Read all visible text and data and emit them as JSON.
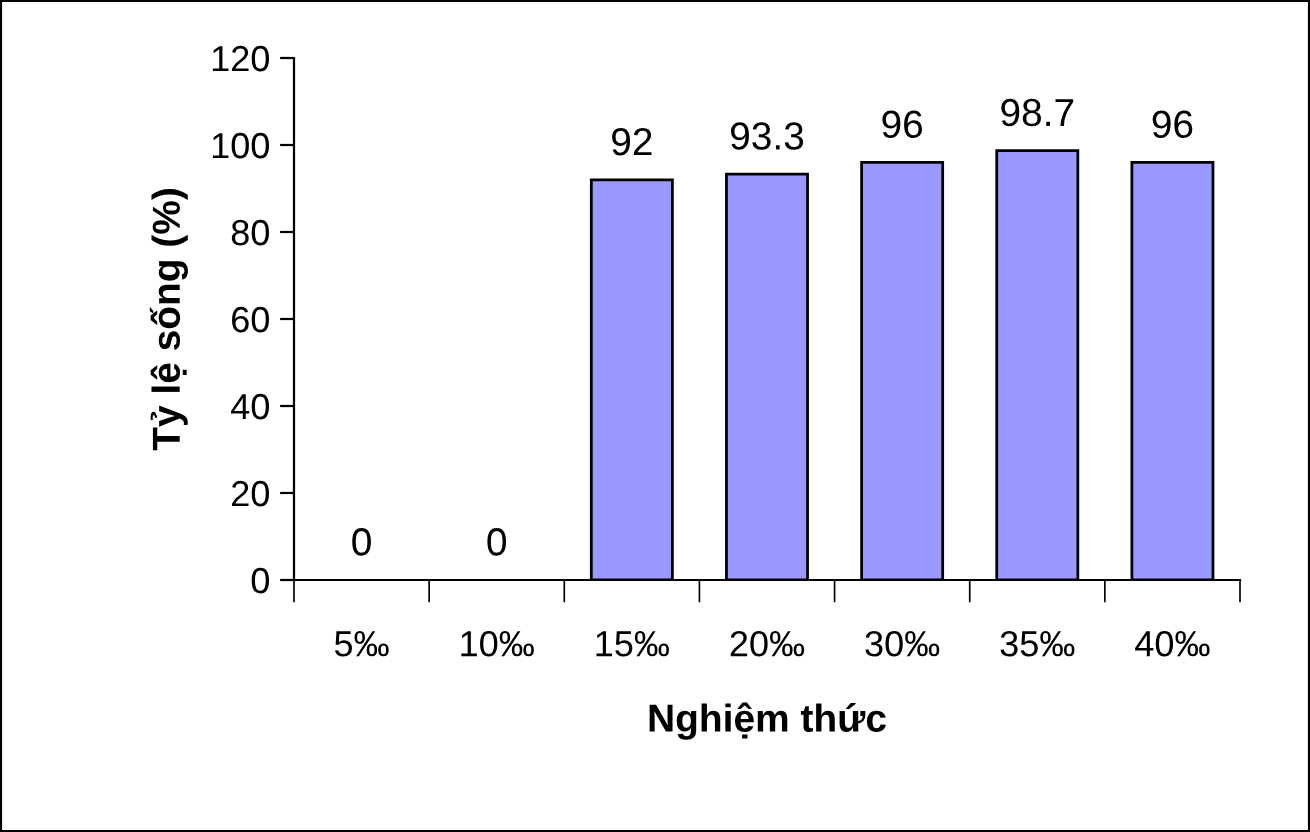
{
  "chart_data": {
    "type": "bar",
    "xlabel": "Nghiệm thức",
    "ylabel": "Tỷ lệ sống (%)",
    "categories": [
      "5‰",
      "10‰",
      "15‰",
      "20‰",
      "30‰",
      "35‰",
      "40‰"
    ],
    "values": [
      0,
      0,
      92,
      93.3,
      96,
      98.7,
      96
    ],
    "color": "#9999ff",
    "ylim": [
      0,
      120
    ],
    "yticks": [
      0,
      20,
      40,
      60,
      80,
      100,
      120
    ],
    "grid": false,
    "data_labels": true
  }
}
